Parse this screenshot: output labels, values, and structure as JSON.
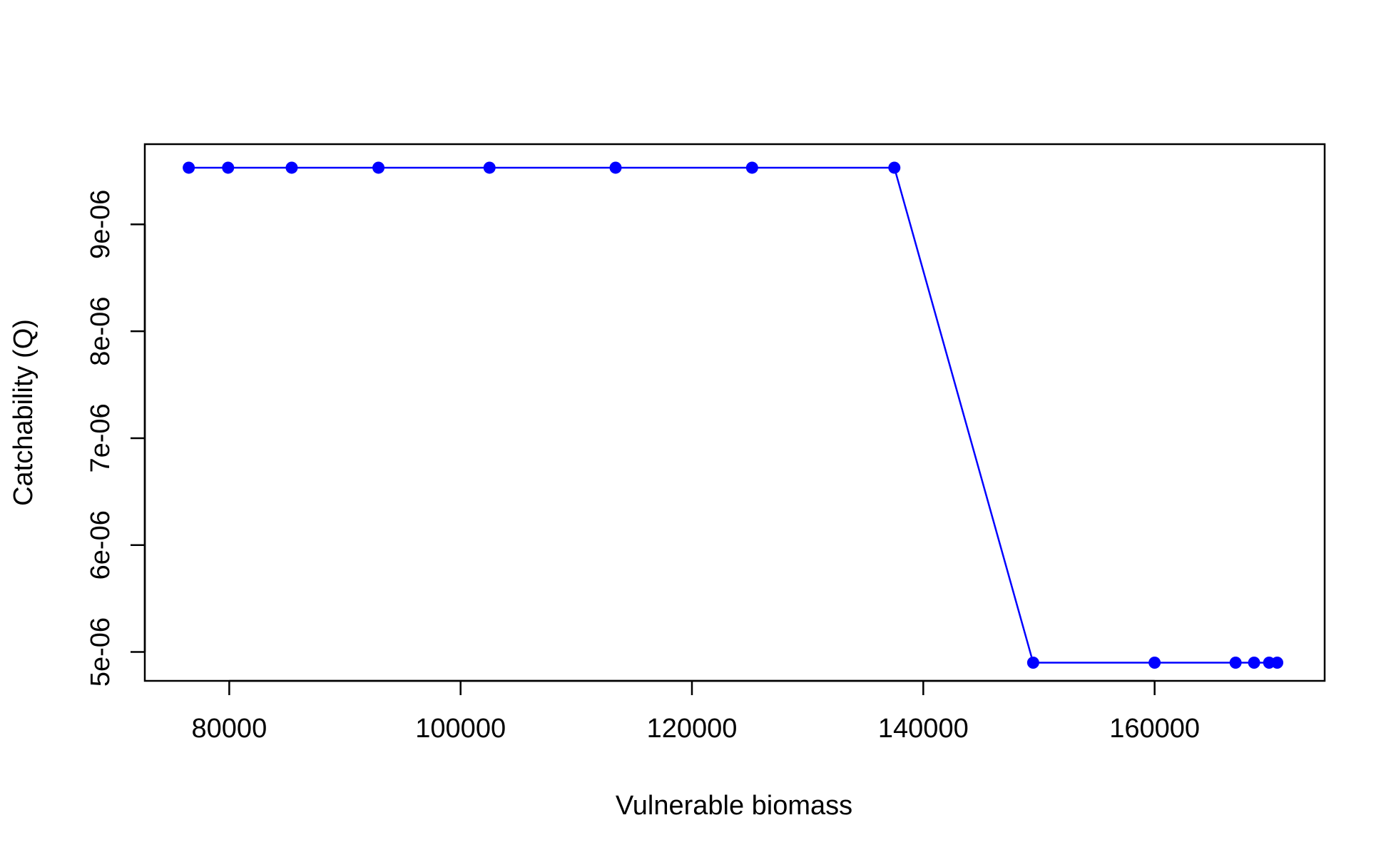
{
  "chart_data": {
    "type": "line",
    "title": "",
    "xlabel": "Vulnerable biomass",
    "ylabel": "Catchability (Q)",
    "xlim": [
      72700,
      174700
    ],
    "ylim": [
      4.73e-06,
      9.75e-06
    ],
    "x_ticks": [
      80000,
      100000,
      120000,
      140000,
      160000
    ],
    "x_tick_labels": [
      "80000",
      "100000",
      "120000",
      "140000",
      "160000"
    ],
    "y_ticks": [
      5e-06,
      6e-06,
      7e-06,
      8e-06,
      9e-06
    ],
    "y_tick_labels": [
      "5e-06",
      "6e-06",
      "7e-06",
      "8e-06",
      "9e-06"
    ],
    "grid": false,
    "series": [
      {
        "color": "#0000ff",
        "marker": "filled-circle",
        "x": [
          76500,
          79900,
          85400,
          92900,
          102500,
          113400,
          125200,
          137500,
          149500,
          160000,
          167000,
          168600,
          169900,
          170600
        ],
        "y": [
          9.53e-06,
          9.53e-06,
          9.53e-06,
          9.53e-06,
          9.53e-06,
          9.53e-06,
          9.53e-06,
          9.53e-06,
          4.9e-06,
          4.9e-06,
          4.9e-06,
          4.9e-06,
          4.9e-06,
          4.9e-06
        ]
      }
    ]
  }
}
